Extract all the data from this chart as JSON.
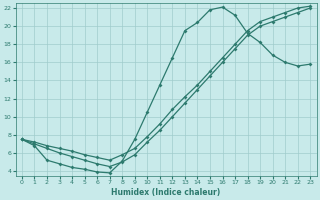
{
  "xlabel": "Humidex (Indice chaleur)",
  "bg_color": "#c8eaea",
  "grid_color": "#a0cccc",
  "line_color": "#2d7a6e",
  "xlim": [
    -0.5,
    23.5
  ],
  "ylim": [
    3.5,
    22.5
  ],
  "xticks": [
    0,
    1,
    2,
    3,
    4,
    5,
    6,
    7,
    8,
    9,
    10,
    11,
    12,
    13,
    14,
    15,
    16,
    17,
    18,
    19,
    20,
    21,
    22,
    23
  ],
  "yticks": [
    4,
    6,
    8,
    10,
    12,
    14,
    16,
    18,
    20,
    22
  ],
  "line1_x": [
    0,
    1,
    2,
    3,
    4,
    5,
    6,
    7,
    8,
    9,
    10,
    11,
    12,
    13,
    14,
    15,
    16,
    17,
    18,
    19,
    20,
    21,
    22,
    23
  ],
  "line1_y": [
    7.5,
    6.8,
    5.2,
    4.8,
    4.4,
    4.2,
    3.9,
    3.8,
    5.1,
    7.5,
    10.5,
    13.5,
    16.5,
    19.5,
    20.4,
    21.8,
    22.1,
    21.2,
    19.2,
    18.2,
    16.8,
    16.0,
    15.6,
    15.8
  ],
  "line2_x": [
    0,
    1,
    2,
    3,
    4,
    5,
    6,
    7,
    8,
    9,
    10,
    11,
    12,
    13,
    14,
    15,
    16,
    17,
    18,
    19,
    20,
    21,
    22,
    23
  ],
  "line2_y": [
    7.5,
    7.2,
    6.8,
    6.5,
    6.2,
    5.8,
    5.5,
    5.2,
    5.8,
    6.5,
    7.8,
    9.2,
    10.8,
    12.2,
    13.5,
    15.0,
    16.5,
    18.0,
    19.5,
    20.5,
    21.0,
    21.5,
    22.0,
    22.2
  ],
  "line3_x": [
    0,
    1,
    2,
    3,
    4,
    5,
    6,
    7,
    8,
    9,
    10,
    11,
    12,
    13,
    14,
    15,
    16,
    17,
    18,
    19,
    20,
    21,
    22,
    23
  ],
  "line3_y": [
    7.5,
    7.0,
    6.5,
    6.0,
    5.6,
    5.2,
    4.8,
    4.5,
    5.0,
    5.8,
    7.2,
    8.5,
    10.0,
    11.5,
    13.0,
    14.5,
    16.0,
    17.5,
    19.0,
    20.0,
    20.5,
    21.0,
    21.5,
    22.0
  ]
}
